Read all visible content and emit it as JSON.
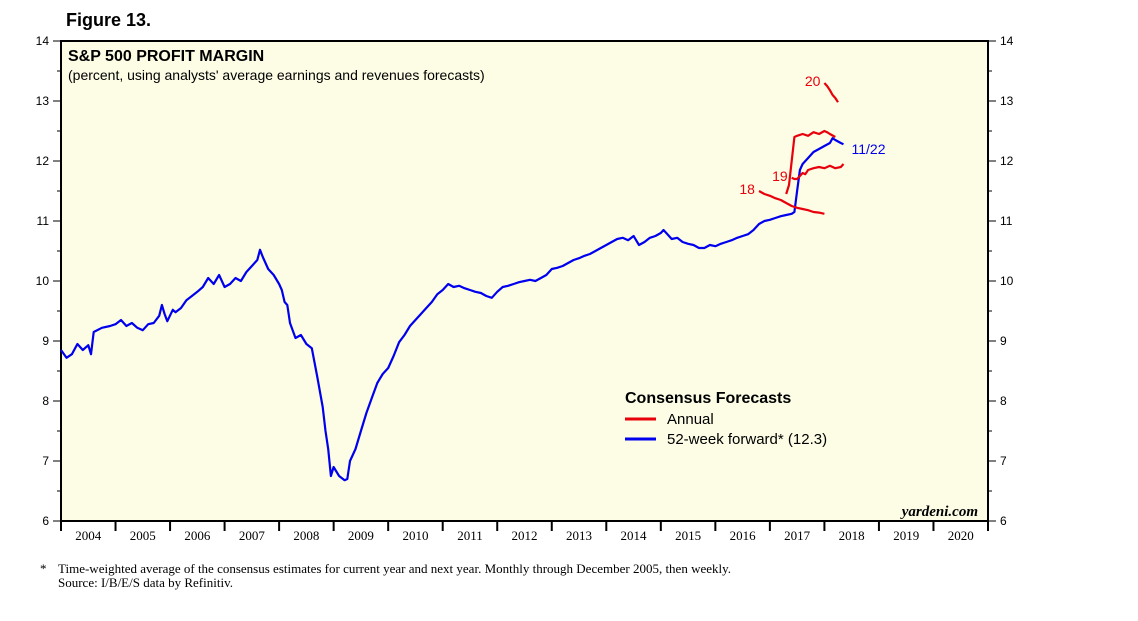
{
  "figure_label": "Figure 13.",
  "footnote": "Time-weighted average of the consensus estimates for current year and next year. Monthly through December 2005, then weekly.",
  "footnote_marker": "*",
  "source": "Source: I/B/E/S data by Refinitiv.",
  "chart_data": {
    "type": "line",
    "title": "S&P 500 PROFIT MARGIN",
    "subtitle": "(percent, using analysts' average earnings and revenues forecasts)",
    "watermark": "yardeni.com",
    "background_color": "#fdfde6",
    "x_ticks": [
      "2004",
      "2005",
      "2006",
      "2007",
      "2008",
      "2009",
      "2010",
      "2011",
      "2012",
      "2013",
      "2014",
      "2015",
      "2016",
      "2017",
      "2018",
      "2019",
      "2020"
    ],
    "xlim": [
      2004,
      2021
    ],
    "ylim": [
      6,
      14
    ],
    "y_ticks": [
      6,
      7,
      8,
      9,
      10,
      11,
      12,
      13,
      14
    ],
    "legend": {
      "title": "Consensus Forecasts",
      "entries": [
        {
          "label": "Annual",
          "color": "#e8000b"
        },
        {
          "label": "52-week forward* (12.3)",
          "color": "#0000ee"
        }
      ]
    },
    "series": [
      {
        "name": "52-week forward",
        "color": "#0000ee",
        "end_label": "11/22",
        "points": [
          [
            2004.0,
            8.85
          ],
          [
            2004.1,
            8.72
          ],
          [
            2004.2,
            8.78
          ],
          [
            2004.3,
            8.95
          ],
          [
            2004.4,
            8.85
          ],
          [
            2004.5,
            8.93
          ],
          [
            2004.55,
            8.78
          ],
          [
            2004.6,
            9.15
          ],
          [
            2004.75,
            9.22
          ],
          [
            2004.9,
            9.25
          ],
          [
            2005.0,
            9.28
          ],
          [
            2005.1,
            9.35
          ],
          [
            2005.2,
            9.25
          ],
          [
            2005.3,
            9.3
          ],
          [
            2005.4,
            9.22
          ],
          [
            2005.5,
            9.18
          ],
          [
            2005.6,
            9.28
          ],
          [
            2005.7,
            9.3
          ],
          [
            2005.8,
            9.42
          ],
          [
            2005.85,
            9.6
          ],
          [
            2005.9,
            9.45
          ],
          [
            2005.95,
            9.33
          ],
          [
            2006.05,
            9.52
          ],
          [
            2006.1,
            9.48
          ],
          [
            2006.2,
            9.55
          ],
          [
            2006.3,
            9.68
          ],
          [
            2006.4,
            9.75
          ],
          [
            2006.5,
            9.82
          ],
          [
            2006.6,
            9.9
          ],
          [
            2006.7,
            10.05
          ],
          [
            2006.8,
            9.95
          ],
          [
            2006.9,
            10.1
          ],
          [
            2007.0,
            9.9
          ],
          [
            2007.1,
            9.95
          ],
          [
            2007.2,
            10.05
          ],
          [
            2007.3,
            10.0
          ],
          [
            2007.4,
            10.15
          ],
          [
            2007.5,
            10.25
          ],
          [
            2007.6,
            10.35
          ],
          [
            2007.65,
            10.52
          ],
          [
            2007.7,
            10.4
          ],
          [
            2007.8,
            10.2
          ],
          [
            2007.9,
            10.1
          ],
          [
            2008.0,
            9.95
          ],
          [
            2008.05,
            9.85
          ],
          [
            2008.1,
            9.65
          ],
          [
            2008.15,
            9.6
          ],
          [
            2008.2,
            9.3
          ],
          [
            2008.3,
            9.05
          ],
          [
            2008.4,
            9.1
          ],
          [
            2008.5,
            8.95
          ],
          [
            2008.6,
            8.88
          ],
          [
            2008.7,
            8.4
          ],
          [
            2008.8,
            7.9
          ],
          [
            2008.85,
            7.5
          ],
          [
            2008.9,
            7.2
          ],
          [
            2008.95,
            6.75
          ],
          [
            2009.0,
            6.9
          ],
          [
            2009.1,
            6.75
          ],
          [
            2009.2,
            6.68
          ],
          [
            2009.25,
            6.7
          ],
          [
            2009.3,
            7.0
          ],
          [
            2009.4,
            7.2
          ],
          [
            2009.5,
            7.5
          ],
          [
            2009.6,
            7.8
          ],
          [
            2009.7,
            8.05
          ],
          [
            2009.8,
            8.3
          ],
          [
            2009.9,
            8.45
          ],
          [
            2010.0,
            8.55
          ],
          [
            2010.1,
            8.75
          ],
          [
            2010.2,
            8.98
          ],
          [
            2010.3,
            9.1
          ],
          [
            2010.4,
            9.25
          ],
          [
            2010.5,
            9.35
          ],
          [
            2010.6,
            9.45
          ],
          [
            2010.7,
            9.55
          ],
          [
            2010.8,
            9.65
          ],
          [
            2010.9,
            9.78
          ],
          [
            2011.0,
            9.85
          ],
          [
            2011.1,
            9.95
          ],
          [
            2011.2,
            9.9
          ],
          [
            2011.3,
            9.92
          ],
          [
            2011.4,
            9.88
          ],
          [
            2011.5,
            9.85
          ],
          [
            2011.6,
            9.82
          ],
          [
            2011.7,
            9.8
          ],
          [
            2011.8,
            9.75
          ],
          [
            2011.9,
            9.72
          ],
          [
            2012.0,
            9.82
          ],
          [
            2012.1,
            9.9
          ],
          [
            2012.2,
            9.92
          ],
          [
            2012.3,
            9.95
          ],
          [
            2012.4,
            9.98
          ],
          [
            2012.5,
            10.0
          ],
          [
            2012.6,
            10.02
          ],
          [
            2012.7,
            10.0
          ],
          [
            2012.8,
            10.05
          ],
          [
            2012.9,
            10.1
          ],
          [
            2013.0,
            10.2
          ],
          [
            2013.1,
            10.22
          ],
          [
            2013.2,
            10.25
          ],
          [
            2013.3,
            10.3
          ],
          [
            2013.4,
            10.35
          ],
          [
            2013.5,
            10.38
          ],
          [
            2013.6,
            10.42
          ],
          [
            2013.7,
            10.45
          ],
          [
            2013.8,
            10.5
          ],
          [
            2013.9,
            10.55
          ],
          [
            2014.0,
            10.6
          ],
          [
            2014.1,
            10.65
          ],
          [
            2014.2,
            10.7
          ],
          [
            2014.3,
            10.72
          ],
          [
            2014.4,
            10.68
          ],
          [
            2014.5,
            10.75
          ],
          [
            2014.6,
            10.6
          ],
          [
            2014.7,
            10.65
          ],
          [
            2014.8,
            10.72
          ],
          [
            2014.9,
            10.75
          ],
          [
            2015.0,
            10.8
          ],
          [
            2015.05,
            10.85
          ],
          [
            2015.1,
            10.8
          ],
          [
            2015.2,
            10.7
          ],
          [
            2015.3,
            10.72
          ],
          [
            2015.4,
            10.65
          ],
          [
            2015.5,
            10.62
          ],
          [
            2015.6,
            10.6
          ],
          [
            2015.7,
            10.55
          ],
          [
            2015.8,
            10.55
          ],
          [
            2015.9,
            10.6
          ],
          [
            2016.0,
            10.58
          ],
          [
            2016.1,
            10.62
          ],
          [
            2016.2,
            10.65
          ],
          [
            2016.3,
            10.68
          ],
          [
            2016.4,
            10.72
          ],
          [
            2016.5,
            10.75
          ],
          [
            2016.6,
            10.78
          ],
          [
            2016.7,
            10.85
          ],
          [
            2016.8,
            10.95
          ],
          [
            2016.9,
            11.0
          ],
          [
            2017.0,
            11.02
          ],
          [
            2017.1,
            11.05
          ],
          [
            2017.2,
            11.08
          ],
          [
            2017.3,
            11.1
          ],
          [
            2017.4,
            11.12
          ],
          [
            2017.45,
            11.15
          ],
          [
            2017.5,
            11.5
          ],
          [
            2017.55,
            11.85
          ],
          [
            2017.6,
            11.95
          ],
          [
            2017.7,
            12.05
          ],
          [
            2017.8,
            12.15
          ],
          [
            2017.9,
            12.2
          ],
          [
            2018.0,
            12.25
          ],
          [
            2018.1,
            12.3
          ],
          [
            2018.15,
            12.38
          ],
          [
            2018.2,
            12.35
          ],
          [
            2018.3,
            12.3
          ],
          [
            2018.35,
            12.28
          ]
        ]
      },
      {
        "name": "2018 annual",
        "label": "18",
        "color": "#e8000b",
        "points": [
          [
            2016.8,
            11.5
          ],
          [
            2016.9,
            11.45
          ],
          [
            2017.0,
            11.42
          ],
          [
            2017.1,
            11.38
          ],
          [
            2017.2,
            11.35
          ],
          [
            2017.3,
            11.3
          ],
          [
            2017.4,
            11.25
          ],
          [
            2017.5,
            11.22
          ],
          [
            2017.6,
            11.2
          ],
          [
            2017.7,
            11.18
          ],
          [
            2017.8,
            11.15
          ],
          [
            2017.9,
            11.14
          ],
          [
            2018.0,
            11.12
          ]
        ]
      },
      {
        "name": "2019 annual",
        "label": "19",
        "color": "#e8000b",
        "points": [
          [
            2017.4,
            11.72
          ],
          [
            2017.45,
            11.7
          ],
          [
            2017.5,
            11.7
          ],
          [
            2017.55,
            11.75
          ],
          [
            2017.6,
            11.8
          ],
          [
            2017.65,
            11.78
          ],
          [
            2017.7,
            11.85
          ],
          [
            2017.8,
            11.88
          ],
          [
            2017.9,
            11.9
          ],
          [
            2018.0,
            11.88
          ],
          [
            2018.1,
            11.92
          ],
          [
            2018.2,
            11.88
          ],
          [
            2018.3,
            11.9
          ],
          [
            2018.35,
            11.95
          ]
        ]
      },
      {
        "name": "2020 annual",
        "label": "20",
        "color": "#e8000b",
        "points": [
          [
            2018.0,
            13.3
          ],
          [
            2018.05,
            13.25
          ],
          [
            2018.1,
            13.18
          ],
          [
            2018.15,
            13.1
          ],
          [
            2018.2,
            13.05
          ],
          [
            2018.25,
            12.98
          ]
        ]
      },
      {
        "name": "annual step",
        "color": "#e8000b",
        "points": [
          [
            2017.3,
            11.45
          ],
          [
            2017.35,
            11.6
          ],
          [
            2017.4,
            12.0
          ],
          [
            2017.45,
            12.4
          ],
          [
            2017.5,
            12.42
          ],
          [
            2017.6,
            12.45
          ],
          [
            2017.7,
            12.42
          ],
          [
            2017.8,
            12.48
          ],
          [
            2017.9,
            12.45
          ],
          [
            2018.0,
            12.5
          ],
          [
            2018.05,
            12.48
          ],
          [
            2018.1,
            12.45
          ],
          [
            2018.2,
            12.4
          ]
        ]
      }
    ]
  }
}
